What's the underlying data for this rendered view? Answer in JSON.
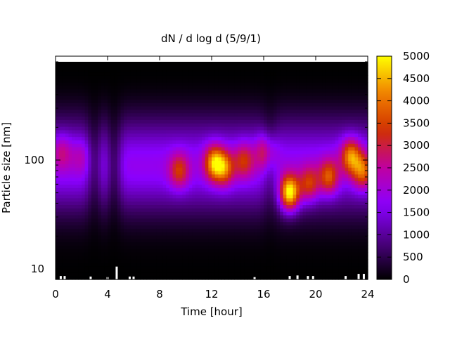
{
  "chart_data": {
    "type": "heatmap",
    "title": "dN / d log d (5/9/1)",
    "xlabel": "Time [hour]",
    "ylabel": "Particle size [nm]",
    "x_range": [
      0,
      24
    ],
    "x_ticks": [
      0,
      4,
      8,
      12,
      16,
      20,
      24
    ],
    "y_scale": "log",
    "y_range": [
      8,
      800
    ],
    "y_ticks": [
      10,
      100
    ],
    "colorbar": {
      "range": [
        0,
        5000
      ],
      "ticks": [
        0,
        500,
        1000,
        1500,
        2000,
        2500,
        3000,
        3500,
        4000,
        4500,
        5000
      ],
      "palette": [
        "#000000",
        "#4b0080",
        "#8a00ff",
        "#c000a0",
        "#d03000",
        "#f08000",
        "#ffff00"
      ]
    },
    "grid": false,
    "background_baseline": {
      "peak_diameter_nm": 90,
      "peak_value": 1800
    },
    "blobs": [
      {
        "time_h": 0.5,
        "diameter_nm": 120,
        "value": 1900
      },
      {
        "time_h": 2.0,
        "diameter_nm": 110,
        "value": 1500
      },
      {
        "time_h": 9.5,
        "diameter_nm": 80,
        "value": 2600
      },
      {
        "time_h": 12.2,
        "diameter_nm": 95,
        "value": 3600
      },
      {
        "time_h": 13.0,
        "diameter_nm": 85,
        "value": 3000
      },
      {
        "time_h": 14.5,
        "diameter_nm": 100,
        "value": 2500
      },
      {
        "time_h": 16.2,
        "diameter_nm": 120,
        "value": 2700
      },
      {
        "time_h": 18.0,
        "diameter_nm": 50,
        "value": 4800
      },
      {
        "time_h": 19.5,
        "diameter_nm": 60,
        "value": 2800
      },
      {
        "time_h": 21.0,
        "diameter_nm": 70,
        "value": 3000
      },
      {
        "time_h": 22.7,
        "diameter_nm": 110,
        "value": 3400
      },
      {
        "time_h": 23.6,
        "diameter_nm": 80,
        "value": 3100
      }
    ],
    "low_bands": [
      {
        "time_h": 3.0,
        "value_drop": 0.55
      },
      {
        "time_h": 4.5,
        "value_drop": 0.6
      },
      {
        "time_h": 16.5,
        "value_drop": 0.35
      }
    ],
    "missing_data_spikes": [
      {
        "time_h": 0.4,
        "top_nm": 8.6
      },
      {
        "time_h": 0.7,
        "top_nm": 8.6
      },
      {
        "time_h": 2.7,
        "top_nm": 8.5
      },
      {
        "time_h": 4.0,
        "top_nm": 8.4
      },
      {
        "time_h": 4.7,
        "top_nm": 10.5
      },
      {
        "time_h": 5.7,
        "top_nm": 8.5
      },
      {
        "time_h": 6.0,
        "top_nm": 8.5
      },
      {
        "time_h": 15.3,
        "top_nm": 8.4
      },
      {
        "time_h": 18.0,
        "top_nm": 8.6
      },
      {
        "time_h": 18.6,
        "top_nm": 8.7
      },
      {
        "time_h": 19.4,
        "top_nm": 8.6
      },
      {
        "time_h": 19.8,
        "top_nm": 8.6
      },
      {
        "time_h": 22.3,
        "top_nm": 8.6
      },
      {
        "time_h": 23.3,
        "top_nm": 9.0
      },
      {
        "time_h": 23.7,
        "top_nm": 9.0
      }
    ]
  }
}
